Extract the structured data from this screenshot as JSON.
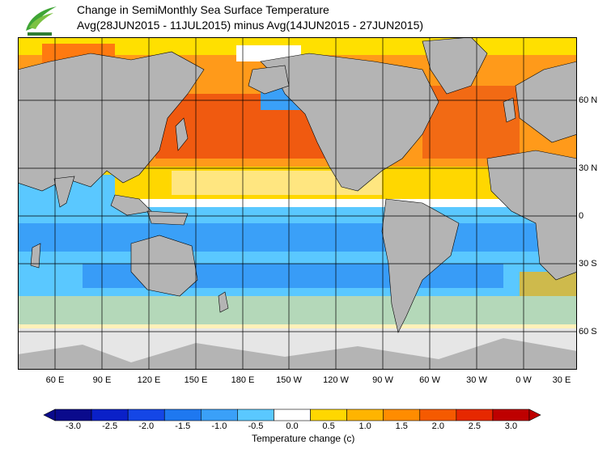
{
  "title_line1": "Change in SemiMonthly Sea Surface Temperature",
  "title_line2": "Avg(28JUN2015 - 11JUL2015) minus Avg(14JUN2015 - 27JUN2015)",
  "lon_labels": [
    "60 E",
    "90 E",
    "120 E",
    "150 E",
    "180 E",
    "150 W",
    "120 W",
    "90 W",
    "60 W",
    "30 W",
    "0 W",
    "30 E"
  ],
  "lat_labels": [
    "60 N",
    "30 N",
    "0",
    "30 S",
    "60 S"
  ],
  "colorbar": {
    "title": "Temperature change  (c)",
    "ticks": [
      "-3.0",
      "-2.5",
      "-2.0",
      "-1.5",
      "-1.0",
      "-0.5",
      "0.0",
      "0.5",
      "1.0",
      "1.5",
      "2.0",
      "2.5",
      "3.0"
    ],
    "colors": [
      "#0a0a8c",
      "#0a20c8",
      "#1446e6",
      "#1e78f0",
      "#3aa0f8",
      "#5ac8ff",
      "#ffffff",
      "#ffd700",
      "#ffb400",
      "#ff8c00",
      "#f55a00",
      "#e62800",
      "#be0000"
    ]
  },
  "colors": {
    "land": "#b4b4b4",
    "ice": "#e6e6e6",
    "ocean_neutral": "#ffffff"
  }
}
